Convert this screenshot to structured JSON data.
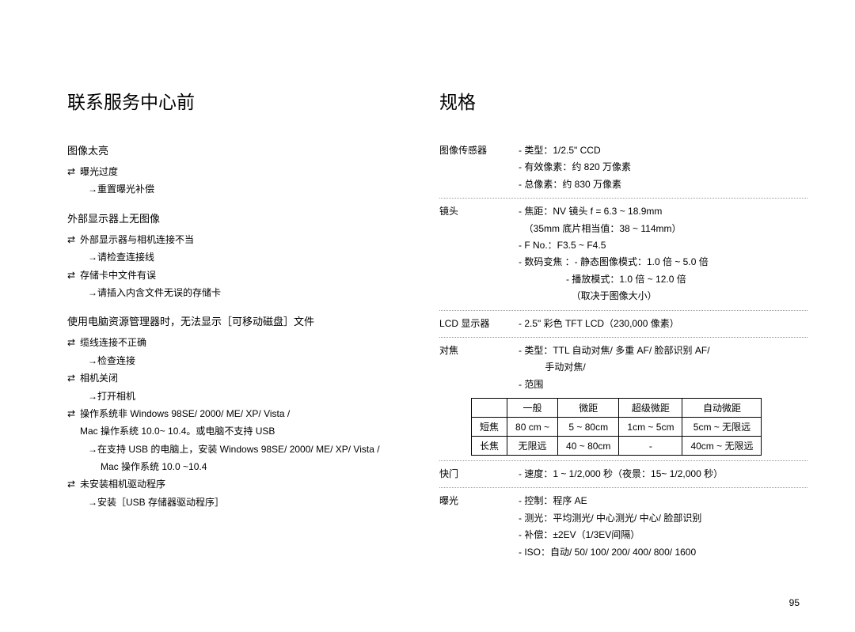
{
  "left": {
    "title": "联系服务中心前",
    "sections": [
      {
        "heading": "图像太亮",
        "items": [
          {
            "type": "bullet",
            "text": "曝光过度"
          },
          {
            "type": "arrow",
            "text": "重置曝光补偿"
          }
        ]
      },
      {
        "heading": "外部显示器上无图像",
        "items": [
          {
            "type": "bullet",
            "text": "外部显示器与相机连接不当"
          },
          {
            "type": "arrow",
            "text": "请检查连接线"
          },
          {
            "type": "bullet",
            "text": "存储卡中文件有误"
          },
          {
            "type": "arrow",
            "text": "请插入内含文件无误的存储卡"
          }
        ]
      },
      {
        "heading": "使用电脑资源管理器时，无法显示［可移动磁盘］文件",
        "items": [
          {
            "type": "bullet",
            "text": "缆线连接不正确"
          },
          {
            "type": "arrow",
            "text": "检查连接"
          },
          {
            "type": "bullet",
            "text": "相机关闭"
          },
          {
            "type": "arrow",
            "text": "打开相机"
          },
          {
            "type": "bullet",
            "text": "操作系统非 Windows 98SE/ 2000/ ME/ XP/ Vista /"
          },
          {
            "type": "cont",
            "text": "Mac 操作系统 10.0~ 10.4。或电脑不支持 USB"
          },
          {
            "type": "arrow",
            "text": "在支持 USB 的电脑上，安装 Windows 98SE/ 2000/ ME/ XP/ Vista /"
          },
          {
            "type": "cont2",
            "text": "Mac 操作系统 10.0 ~10.4"
          },
          {
            "type": "bullet",
            "text": "未安装相机驱动程序"
          },
          {
            "type": "arrow",
            "text": "安装［USB 存储器驱动程序］"
          }
        ]
      }
    ]
  },
  "right": {
    "title": "规格",
    "specs": [
      {
        "label": "图像传感器",
        "values": [
          "- 类型：1/2.5\" CCD",
          "- 有效像素：约 820 万像素",
          "- 总像素：约 830 万像素"
        ],
        "sep": true
      },
      {
        "label": "镜头",
        "values": [
          "- 焦距：NV 镜头 f = 6.3 ~ 18.9mm",
          "  （35mm 底片相当值：38 ~ 114mm）",
          "- F No.：F3.5 ~ F4.5",
          "- 数码变焦 ：- 静态图像模式：1.0 倍 ~ 5.0 倍",
          "                  - 播放模式：1.0 倍 ~ 12.0 倍",
          "                    （取决于图像大小）"
        ],
        "sep": true
      },
      {
        "label": "LCD 显示器",
        "values": [
          "- 2.5\" 彩色 TFT LCD（230,000 像素）"
        ],
        "sep": true
      },
      {
        "label": "对焦",
        "values": [
          "- 类型：TTL 自动对焦/ 多重 AF/ 脸部识别 AF/",
          "          手动对焦/",
          "- 范围"
        ],
        "table": true,
        "sep": true
      },
      {
        "label": "快门",
        "values": [
          "- 速度：1 ~ 1/2,000 秒（夜景：15~ 1/2,000 秒）"
        ],
        "sep": true
      },
      {
        "label": "曝光",
        "values": [
          "- 控制：程序 AE",
          "- 测光：平均测光/ 中心测光/ 中心/ 脸部识别",
          "- 补偿：±2EV（1/3EV间隔）",
          "- ISO：自动/ 50/ 100/ 200/ 400/ 800/ 1600"
        ],
        "sep": false
      }
    ],
    "focus_table": {
      "headers": [
        "",
        "一般",
        "微距",
        "超级微距",
        "自动微距"
      ],
      "rows": [
        [
          "短焦",
          "80 cm ~",
          "5 ~ 80cm",
          "1cm ~ 5cm",
          "5cm ~ 无限远"
        ],
        [
          "长焦",
          "无限远",
          "40 ~ 80cm",
          "-",
          "40cm ~ 无限远"
        ]
      ]
    }
  },
  "glyphs": {
    "bullet": "⇄",
    "arrow": "→"
  },
  "page_number": "95"
}
